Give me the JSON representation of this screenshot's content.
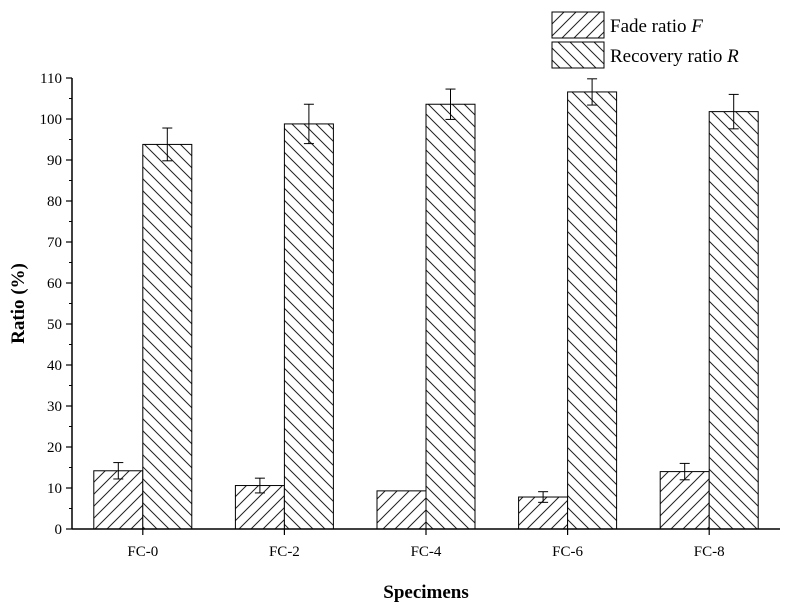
{
  "chart_data": {
    "type": "bar",
    "xlabel": "Specimens",
    "ylabel": "Ratio (%)",
    "categories": [
      "FC-0",
      "FC-2",
      "FC-4",
      "FC-6",
      "FC-8"
    ],
    "ylim": [
      0,
      110
    ],
    "yticks": [
      0,
      10,
      20,
      30,
      40,
      50,
      60,
      70,
      80,
      90,
      100,
      110
    ],
    "grid": false,
    "legend_position": "top-right",
    "series": [
      {
        "name": "Fade ratio F",
        "label_text": "Fade ratio ",
        "label_symbol": "F",
        "values": [
          14.2,
          10.6,
          9.3,
          7.8,
          14.0
        ],
        "errors": [
          2.0,
          1.8,
          0.0,
          1.3,
          2.0
        ],
        "pattern": "hatch-forward"
      },
      {
        "name": "Recovery ratio R",
        "label_text": "Recovery ratio ",
        "label_symbol": "R",
        "values": [
          93.8,
          98.8,
          103.6,
          106.6,
          101.8
        ],
        "errors": [
          4.0,
          4.8,
          3.7,
          3.2,
          4.2
        ],
        "pattern": "hatch-backward"
      }
    ]
  }
}
